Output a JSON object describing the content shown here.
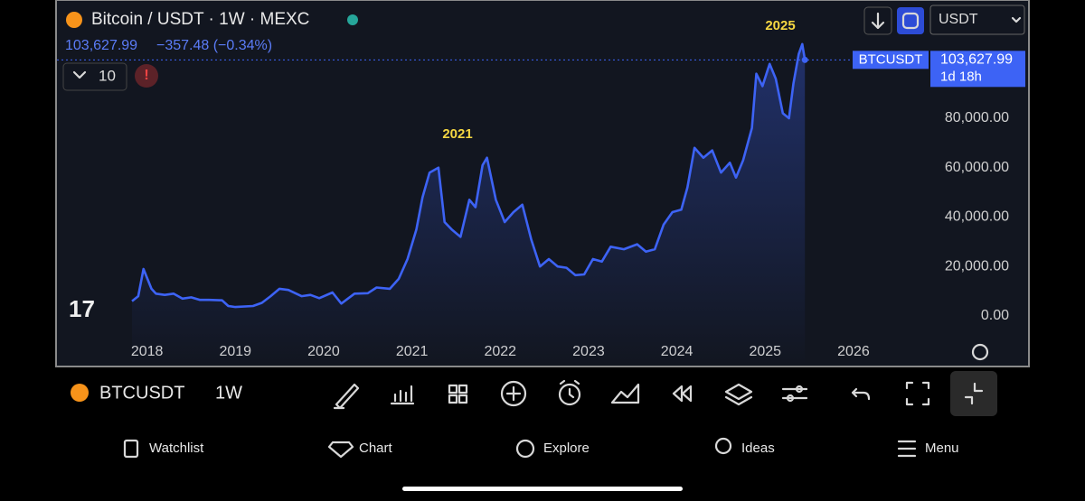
{
  "header": {
    "title": "Bitcoin / USDT · 1W · MEXC",
    "price": "103,627.99",
    "change": "−357.48 (−0.34%)",
    "indicator_count": "10",
    "currency": "USDT"
  },
  "chart_data": {
    "type": "line",
    "series": [
      {
        "name": "BTCUSDT",
        "color": "#3d63f5",
        "x": [
          2017.83,
          2017.9,
          2017.96,
          2018.05,
          2018.1,
          2018.2,
          2018.3,
          2018.4,
          2018.5,
          2018.6,
          2018.7,
          2018.85,
          2018.92,
          2019.0,
          2019.2,
          2019.3,
          2019.4,
          2019.5,
          2019.6,
          2019.75,
          2019.85,
          2019.95,
          2020.1,
          2020.2,
          2020.35,
          2020.5,
          2020.6,
          2020.75,
          2020.85,
          2020.95,
          2021.05,
          2021.12,
          2021.2,
          2021.3,
          2021.37,
          2021.45,
          2021.55,
          2021.65,
          2021.72,
          2021.8,
          2021.85,
          2021.95,
          2022.05,
          2022.15,
          2022.25,
          2022.35,
          2022.45,
          2022.55,
          2022.65,
          2022.75,
          2022.85,
          2022.95,
          2023.05,
          2023.15,
          2023.25,
          2023.4,
          2023.55,
          2023.65,
          2023.75,
          2023.85,
          2023.95,
          2024.05,
          2024.12,
          2024.2,
          2024.3,
          2024.4,
          2024.5,
          2024.6,
          2024.67,
          2024.75,
          2024.85,
          2024.9,
          2024.97,
          2025.05,
          2025.12,
          2025.2,
          2025.27,
          2025.32,
          2025.38,
          2025.42,
          2025.45
        ],
        "values": [
          6000,
          8000,
          19000,
          11000,
          9000,
          8500,
          9000,
          7000,
          7500,
          6500,
          6500,
          6300,
          4000,
          3600,
          4000,
          5300,
          8000,
          11000,
          10500,
          8000,
          8500,
          7200,
          9500,
          5000,
          9000,
          9200,
          11500,
          11000,
          15000,
          23000,
          35000,
          48000,
          58000,
          60000,
          38000,
          35000,
          32000,
          47000,
          44000,
          61000,
          64000,
          47000,
          38000,
          42000,
          45000,
          31000,
          20000,
          23000,
          20000,
          19500,
          16500,
          16800,
          23000,
          22000,
          28000,
          27000,
          29000,
          26000,
          27000,
          37000,
          42000,
          43000,
          52000,
          68000,
          64000,
          67000,
          58000,
          62000,
          56000,
          63000,
          76000,
          98000,
          93000,
          102000,
          96000,
          82000,
          80000,
          94000,
          106000,
          110000,
          103627.99
        ]
      }
    ],
    "xlim": [
      2016.98,
      2026.83
    ],
    "xticks": [
      2018,
      2019,
      2020,
      2021,
      2022,
      2023,
      2024,
      2025,
      2026
    ],
    "ylim": [
      -20100,
      124200
    ],
    "yticks": [
      {
        "value": 0,
        "label": "0.00"
      },
      {
        "value": 20000,
        "label": "20,000.00"
      },
      {
        "value": 40000,
        "label": "40,000.00"
      },
      {
        "value": 60000,
        "label": "60,000.00"
      },
      {
        "value": 80000,
        "label": "80,000.00"
      }
    ],
    "annotations": [
      "2021",
      "2025"
    ],
    "price_tag": {
      "symbol": "BTCUSDT",
      "price": "103,627.99",
      "countdown": "1d 18h"
    }
  },
  "toolbar": {
    "symbol": "BTCUSDT",
    "interval": "1W"
  },
  "nav": [
    "Watchlist",
    "Chart",
    "Explore",
    "Ideas",
    "Menu"
  ]
}
